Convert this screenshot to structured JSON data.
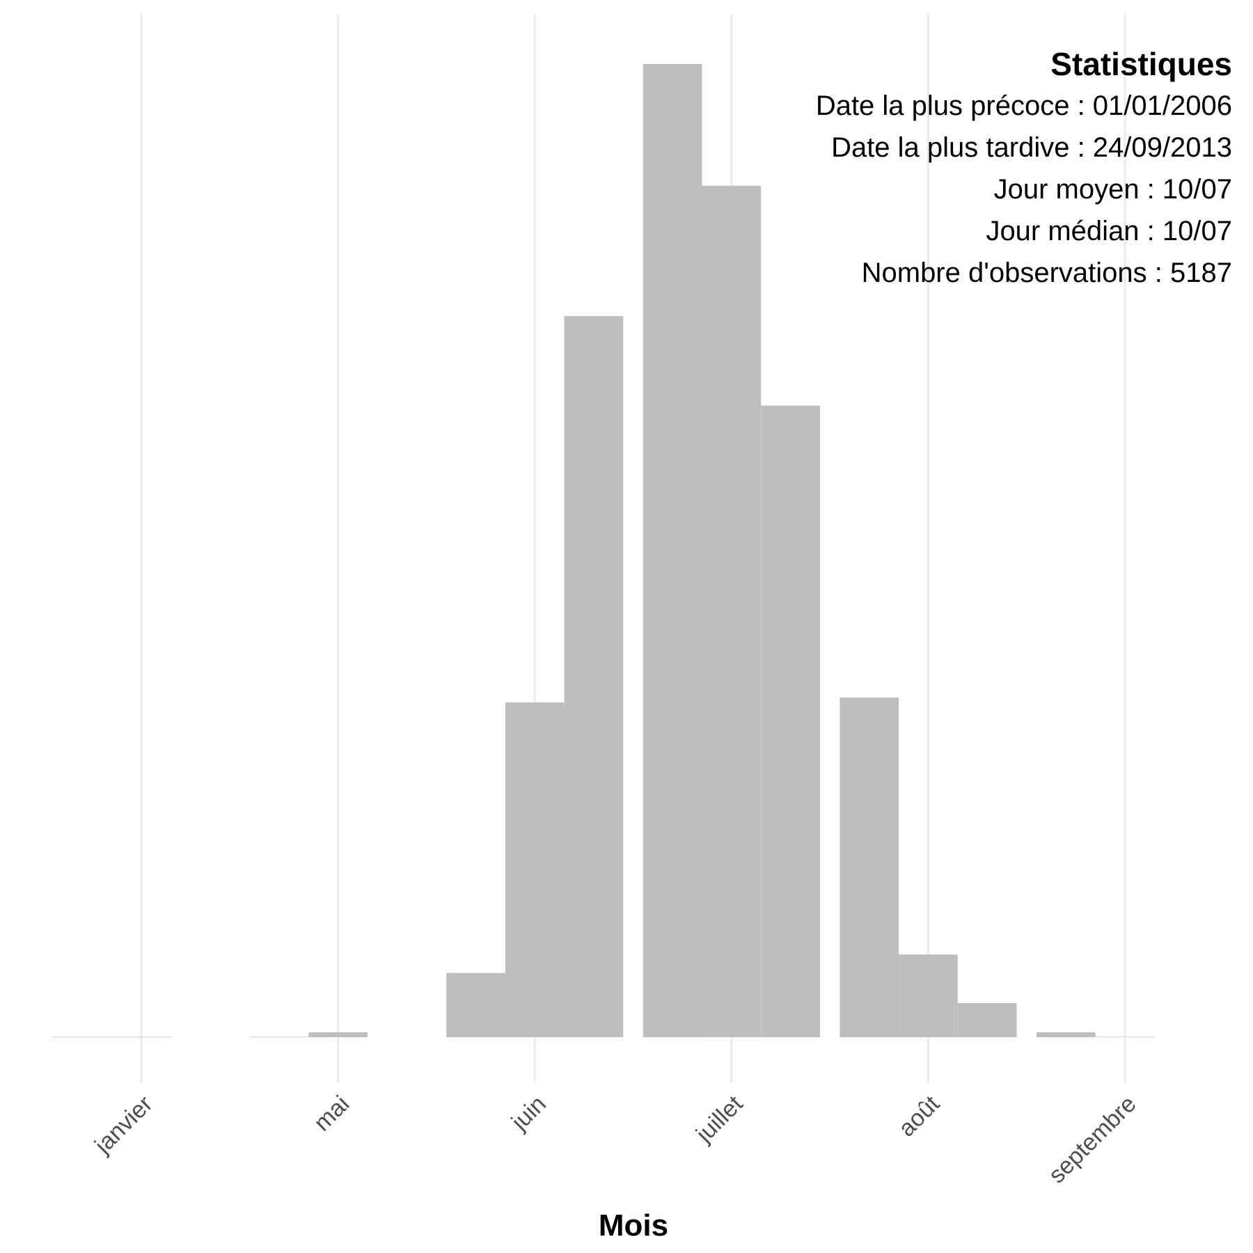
{
  "chart_data": {
    "type": "bar",
    "xlabel": "Mois",
    "ylabel": "",
    "ylim": [
      0,
      1000
    ],
    "grid": "vertical",
    "bar_color": "#bebebe",
    "grid_color": "#ebebeb",
    "months": [
      {
        "label": "janvier",
        "bars": [
          0.5,
          0.5
        ]
      },
      {
        "label": "mai",
        "bars": [
          0.5,
          5
        ]
      },
      {
        "label": "juin",
        "bars": [
          66,
          344,
          741
        ]
      },
      {
        "label": "juillet",
        "bars": [
          1000,
          875,
          649
        ]
      },
      {
        "label": "août",
        "bars": [
          349,
          85,
          35
        ]
      },
      {
        "label": "septembre",
        "bars": [
          5,
          0.5
        ]
      }
    ]
  },
  "stats": {
    "title": "Statistiques",
    "lines": [
      "Date la plus précoce : 01/01/2006",
      "Date la plus tardive : 24/09/2013",
      "Jour moyen : 10/07",
      "Jour médian : 10/07",
      "Nombre d'observations : 5187"
    ]
  }
}
